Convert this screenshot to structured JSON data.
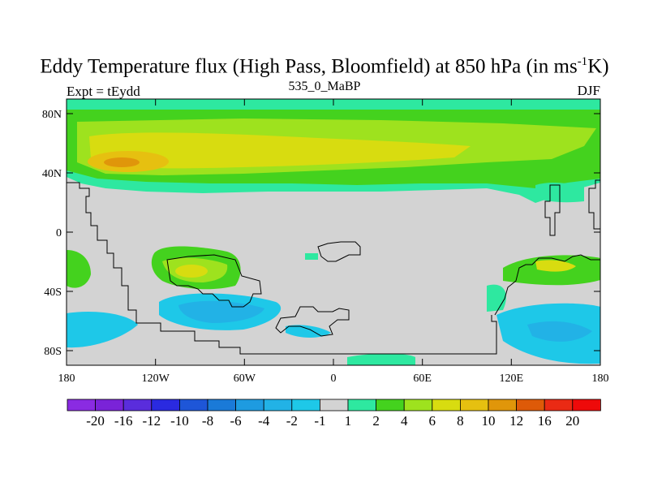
{
  "title": {
    "main": "Eddy Temperature flux (High Pass, Bloomfield) at 850 hPa (in ms",
    "sup": "-1",
    "unit_end": "K)"
  },
  "subtitle": {
    "left": "Expt = tEydd",
    "center": "535_0_MaBP",
    "right": "DJF"
  },
  "map": {
    "lat_labels": [
      "80N",
      "40N",
      "0",
      "40S",
      "80S"
    ],
    "lon_labels": [
      "180",
      "120W",
      "60W",
      "0",
      "60E",
      "120E",
      "180"
    ],
    "background_color": "#d3d3d3"
  },
  "colorbar": {
    "labels": [
      "-20",
      "-16",
      "-12",
      "-10",
      "-8",
      "-6",
      "-4",
      "-2",
      "-1",
      "1",
      "2",
      "4",
      "6",
      "8",
      "10",
      "12",
      "16",
      "20"
    ],
    "colors": [
      "#8a2be2",
      "#7a23d8",
      "#5a2ddc",
      "#2a2ae0",
      "#1e56d8",
      "#1a7ad8",
      "#1e9be0",
      "#22b2e6",
      "#1ec8e8",
      "#d3d3d3",
      "#2ee8a0",
      "#44d21e",
      "#9ee21e",
      "#d8dc10",
      "#e6c010",
      "#e0960a",
      "#de5a08",
      "#ea2a14",
      "#ee0a0a"
    ]
  }
}
